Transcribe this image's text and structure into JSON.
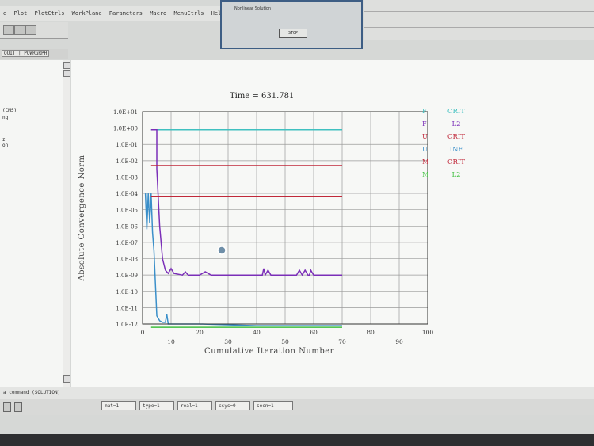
{
  "app": {
    "menu_items": [
      "e",
      "Plot",
      "PlotCtrls",
      "WorkPlane",
      "Parameters",
      "Macro",
      "MenuCtrls",
      "Help"
    ],
    "tab_label": "QUIT | POWRGRPH",
    "left_panel_lines": [
      "(CMS)",
      "ng",
      "z",
      "on"
    ]
  },
  "dialog": {
    "title": "Nonlinear Solution",
    "stop_label": "STOP"
  },
  "command": {
    "label": "a command (SOLUTION)"
  },
  "status_fields": [
    "mat=1",
    "type=1",
    "real=1",
    "csys=0",
    "secn=1"
  ],
  "chart_data": {
    "type": "line",
    "title": "Time = 631.781",
    "xlabel": "Cumulative Iteration Number",
    "ylabel": "Absolute Convergence Norm",
    "y_scale": "log",
    "ylim_exponent": [
      -12,
      1
    ],
    "xlim": [
      0,
      100
    ],
    "y_tick_labels": [
      "1.0E+01",
      "1.0E+00",
      "1.0E-01",
      "1.0E-02",
      "1.0E-03",
      "1.0E-04",
      "1.0E-05",
      "1.0E-06",
      "1.0E-07",
      "1.0E-08",
      "1.0E-09",
      "1.0E-10",
      "1.0E-11",
      "1.0E-12"
    ],
    "x_tick_labels": [
      "0",
      "10",
      "20",
      "30",
      "40",
      "50",
      "60",
      "70",
      "80",
      "90",
      "100"
    ],
    "grid": true,
    "legend_position": "right",
    "legend": [
      {
        "letter": "F",
        "label": "CRIT",
        "color": "#3fc0c0"
      },
      {
        "letter": "F",
        "label": "L2",
        "color": "#7b2fb8"
      },
      {
        "letter": "U",
        "label": "CRIT",
        "color": "#c0283a"
      },
      {
        "letter": "U",
        "label": "INF",
        "color": "#3a8fc9"
      },
      {
        "letter": "M",
        "label": "CRIT",
        "color": "#c0283a"
      },
      {
        "letter": "M",
        "label": "L2",
        "color": "#3fbf3f"
      }
    ],
    "series": [
      {
        "name": "F CRIT",
        "color": "#3fc0c0",
        "x": [
          3,
          70
        ],
        "log_y": [
          -0.1,
          -0.1
        ]
      },
      {
        "name": "F L2",
        "color": "#7b2fb8",
        "x": [
          3,
          5,
          5,
          6,
          7,
          8,
          9,
          10,
          11,
          14,
          15,
          16,
          18,
          20,
          22,
          24,
          26,
          28,
          30,
          31,
          32,
          40,
          42,
          42.5,
          43,
          44,
          45,
          46,
          47,
          54,
          55,
          56,
          57,
          58,
          58.5,
          59,
          60,
          70
        ],
        "log_y": [
          -0.1,
          -0.1,
          -2.5,
          -6.0,
          -8.0,
          -8.7,
          -8.9,
          -8.6,
          -8.9,
          -9.0,
          -8.8,
          -9.0,
          -9.0,
          -9.0,
          -8.8,
          -9.0,
          -9.0,
          -9.0,
          -9.0,
          -9.0,
          -9.0,
          -9.0,
          -9.0,
          -8.6,
          -9.0,
          -8.7,
          -9.0,
          -9.0,
          -9.0,
          -9.0,
          -8.7,
          -9.0,
          -8.7,
          -9.0,
          -9.0,
          -8.7,
          -9.0,
          -9.0
        ]
      },
      {
        "name": "U CRIT",
        "color": "#c0283a",
        "x": [
          3,
          70
        ],
        "log_y": [
          -2.3,
          -2.3
        ]
      },
      {
        "name": "U INF",
        "color": "#3a8fc9",
        "x": [
          1,
          1.5,
          2,
          2.5,
          3,
          3.5,
          4,
          4.5,
          5,
          6,
          7,
          8,
          8.5,
          9,
          10,
          20,
          40,
          70
        ],
        "log_y": [
          -4.0,
          -6.2,
          -4.0,
          -5.8,
          -4.0,
          -6.4,
          -7.5,
          -9.5,
          -11.5,
          -11.8,
          -11.9,
          -11.9,
          -11.4,
          -12.0,
          -12.0,
          -12.0,
          -12.1,
          -12.1
        ]
      },
      {
        "name": "M CRIT",
        "color": "#c0283a",
        "x": [
          3,
          70
        ],
        "log_y": [
          -4.2,
          -4.2
        ]
      },
      {
        "name": "M L2",
        "color": "#3fbf3f",
        "x": [
          3,
          70
        ],
        "log_y": [
          -12.2,
          -12.2
        ]
      }
    ]
  }
}
